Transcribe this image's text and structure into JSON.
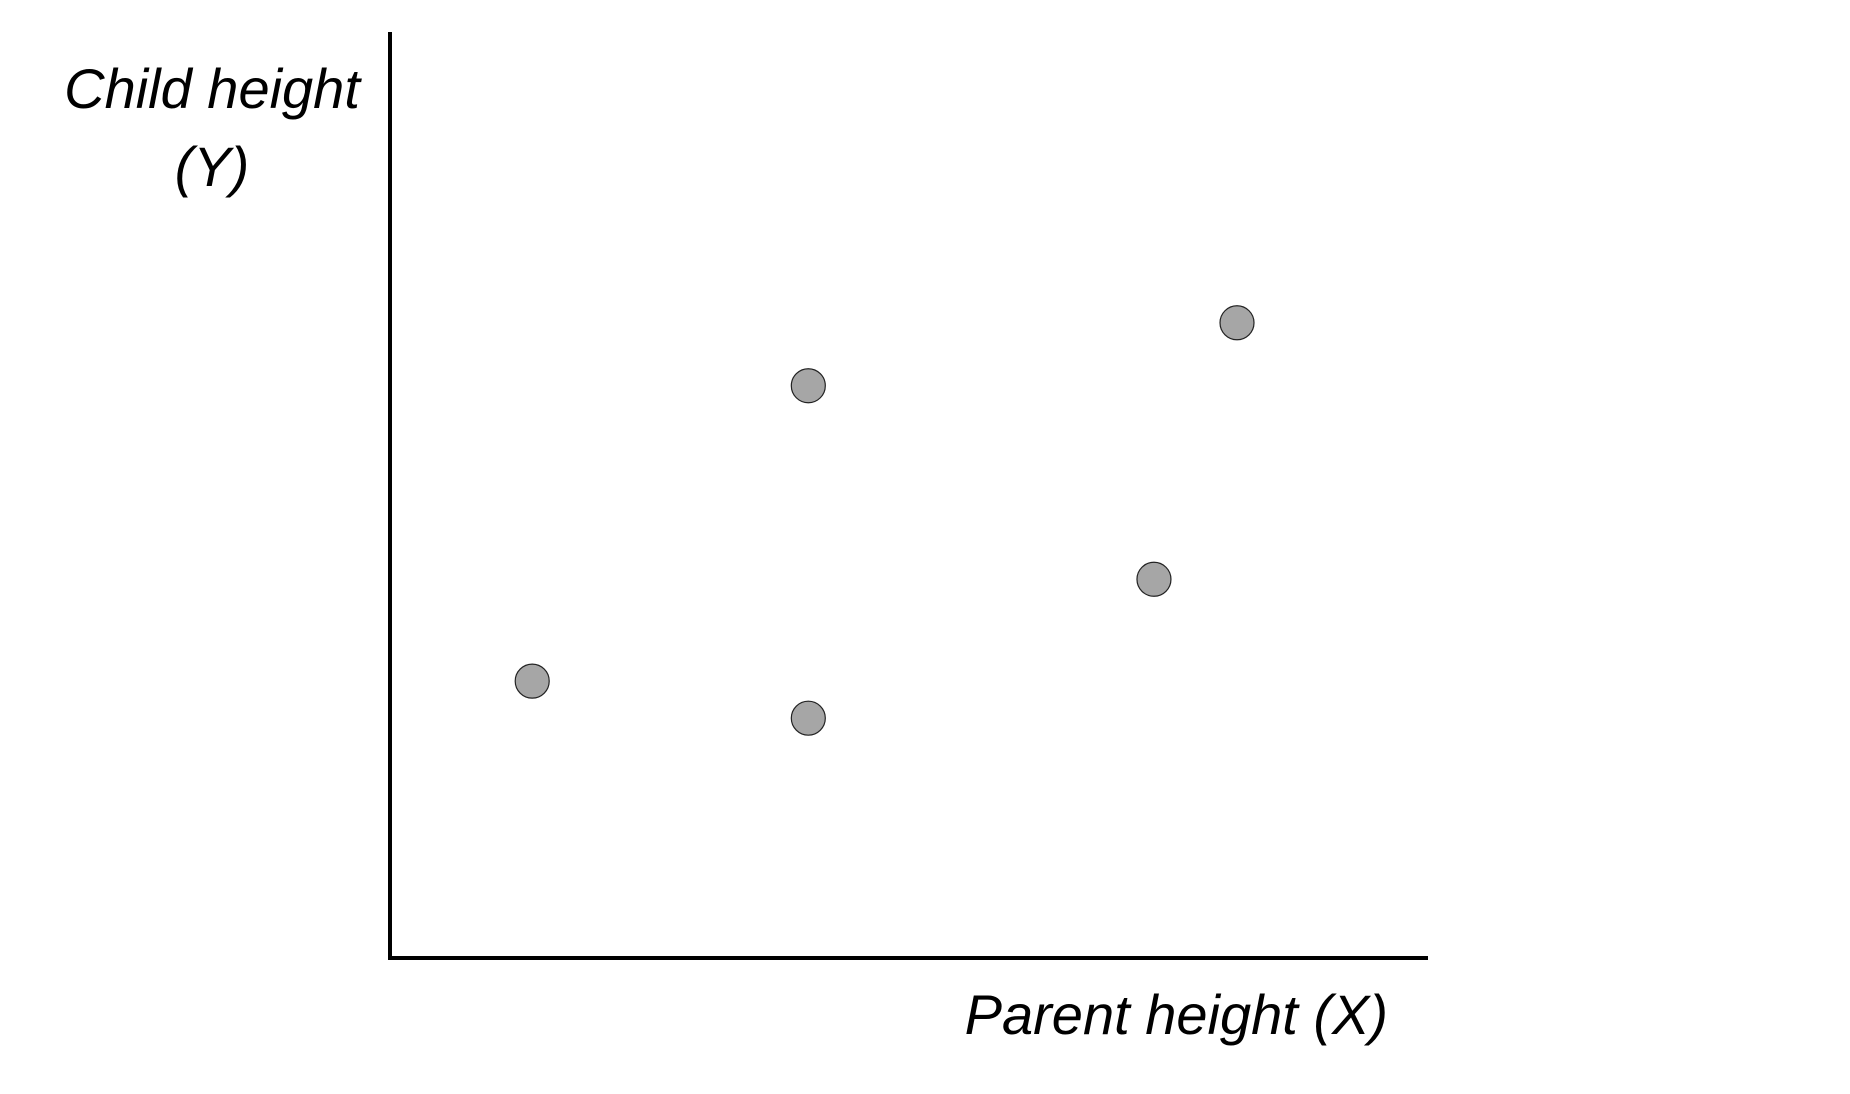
{
  "chart_data": {
    "type": "scatter",
    "title": "",
    "xlabel": "Parent height (X)",
    "ylabel_lines": [
      "Child height",
      "(Y)"
    ],
    "x_ticks": false,
    "y_ticks": false,
    "grid": false,
    "xlim": [
      0,
      100
    ],
    "ylim": [
      0,
      100
    ],
    "points": [
      {
        "x": 13.7,
        "y": 29.9
      },
      {
        "x": 40.3,
        "y": 25.9
      },
      {
        "x": 40.3,
        "y": 61.8
      },
      {
        "x": 73.6,
        "y": 40.9
      },
      {
        "x": 81.6,
        "y": 68.6
      }
    ],
    "point_color": "#a6a6a6",
    "point_outline_color": "#222222",
    "axis_color": "#000000"
  }
}
